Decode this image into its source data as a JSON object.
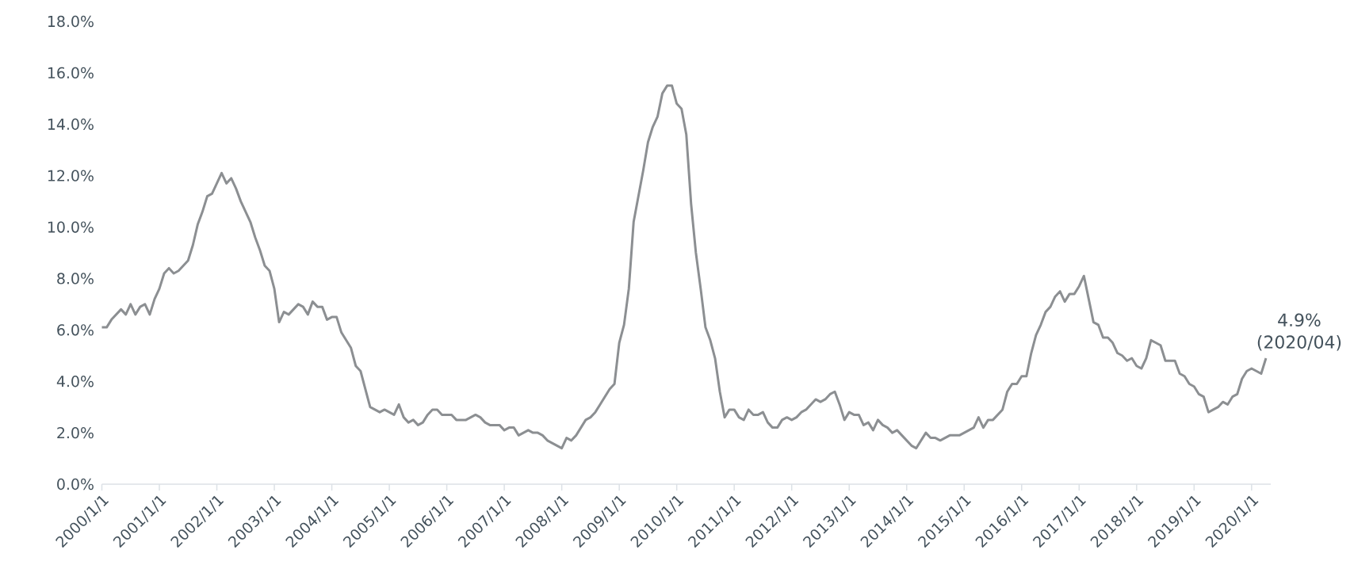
{
  "chart_data": {
    "type": "line",
    "x": [
      "2000-01",
      "2000-02",
      "2000-03",
      "2000-04",
      "2000-05",
      "2000-06",
      "2000-07",
      "2000-08",
      "2000-09",
      "2000-10",
      "2000-11",
      "2000-12",
      "2001-01",
      "2001-02",
      "2001-03",
      "2001-04",
      "2001-05",
      "2001-06",
      "2001-07",
      "2001-08",
      "2001-09",
      "2001-10",
      "2001-11",
      "2001-12",
      "2002-01",
      "2002-02",
      "2002-03",
      "2002-04",
      "2002-05",
      "2002-06",
      "2002-07",
      "2002-08",
      "2002-09",
      "2002-10",
      "2002-11",
      "2002-12",
      "2003-01",
      "2003-02",
      "2003-03",
      "2003-04",
      "2003-05",
      "2003-06",
      "2003-07",
      "2003-08",
      "2003-09",
      "2003-10",
      "2003-11",
      "2003-12",
      "2004-01",
      "2004-02",
      "2004-03",
      "2004-04",
      "2004-05",
      "2004-06",
      "2004-07",
      "2004-08",
      "2004-09",
      "2004-10",
      "2004-11",
      "2004-12",
      "2005-01",
      "2005-02",
      "2005-03",
      "2005-04",
      "2005-05",
      "2005-06",
      "2005-07",
      "2005-08",
      "2005-09",
      "2005-10",
      "2005-11",
      "2005-12",
      "2006-01",
      "2006-02",
      "2006-03",
      "2006-04",
      "2006-05",
      "2006-06",
      "2006-07",
      "2006-08",
      "2006-09",
      "2006-10",
      "2006-11",
      "2006-12",
      "2007-01",
      "2007-02",
      "2007-03",
      "2007-04",
      "2007-05",
      "2007-06",
      "2007-07",
      "2007-08",
      "2007-09",
      "2007-10",
      "2007-11",
      "2007-12",
      "2008-01",
      "2008-02",
      "2008-03",
      "2008-04",
      "2008-05",
      "2008-06",
      "2008-07",
      "2008-08",
      "2008-09",
      "2008-10",
      "2008-11",
      "2008-12",
      "2009-01",
      "2009-02",
      "2009-03",
      "2009-04",
      "2009-05",
      "2009-06",
      "2009-07",
      "2009-08",
      "2009-09",
      "2009-10",
      "2009-11",
      "2009-12",
      "2010-01",
      "2010-02",
      "2010-03",
      "2010-04",
      "2010-05",
      "2010-06",
      "2010-07",
      "2010-08",
      "2010-09",
      "2010-10",
      "2010-11",
      "2010-12",
      "2011-01",
      "2011-02",
      "2011-03",
      "2011-04",
      "2011-05",
      "2011-06",
      "2011-07",
      "2011-08",
      "2011-09",
      "2011-10",
      "2011-11",
      "2011-12",
      "2012-01",
      "2012-02",
      "2012-03",
      "2012-04",
      "2012-05",
      "2012-06",
      "2012-07",
      "2012-08",
      "2012-09",
      "2012-10",
      "2012-11",
      "2012-12",
      "2013-01",
      "2013-02",
      "2013-03",
      "2013-04",
      "2013-05",
      "2013-06",
      "2013-07",
      "2013-08",
      "2013-09",
      "2013-10",
      "2013-11",
      "2013-12",
      "2014-01",
      "2014-02",
      "2014-03",
      "2014-04",
      "2014-05",
      "2014-06",
      "2014-07",
      "2014-08",
      "2014-09",
      "2014-10",
      "2014-11",
      "2014-12",
      "2015-01",
      "2015-02",
      "2015-03",
      "2015-04",
      "2015-05",
      "2015-06",
      "2015-07",
      "2015-08",
      "2015-09",
      "2015-10",
      "2015-11",
      "2015-12",
      "2016-01",
      "2016-02",
      "2016-03",
      "2016-04",
      "2016-05",
      "2016-06",
      "2016-07",
      "2016-08",
      "2016-09",
      "2016-10",
      "2016-11",
      "2016-12",
      "2017-01",
      "2017-02",
      "2017-03",
      "2017-04",
      "2017-05",
      "2017-06",
      "2017-07",
      "2017-08",
      "2017-09",
      "2017-10",
      "2017-11",
      "2017-12",
      "2018-01",
      "2018-02",
      "2018-03",
      "2018-04",
      "2018-05",
      "2018-06",
      "2018-07",
      "2018-08",
      "2018-09",
      "2018-10",
      "2018-11",
      "2018-12",
      "2019-01",
      "2019-02",
      "2019-03",
      "2019-04",
      "2019-05",
      "2019-06",
      "2019-07",
      "2019-08",
      "2019-09",
      "2019-10",
      "2019-11",
      "2019-12",
      "2020-01",
      "2020-02",
      "2020-03",
      "2020-04"
    ],
    "series": [
      {
        "color": "#8c8f92",
        "values": [
          6.1,
          6.1,
          6.4,
          6.6,
          6.8,
          6.6,
          7.0,
          6.6,
          6.9,
          7.0,
          6.6,
          7.2,
          7.6,
          8.2,
          8.4,
          8.2,
          8.3,
          8.5,
          8.7,
          9.3,
          10.1,
          10.6,
          11.2,
          11.3,
          11.7,
          12.1,
          11.7,
          11.9,
          11.5,
          11.0,
          10.6,
          10.2,
          9.6,
          9.1,
          8.5,
          8.3,
          7.6,
          6.3,
          6.7,
          6.6,
          6.8,
          7.0,
          6.9,
          6.6,
          7.1,
          6.9,
          6.9,
          6.4,
          6.5,
          6.5,
          5.9,
          5.6,
          5.3,
          4.6,
          4.4,
          3.7,
          3.0,
          2.9,
          2.8,
          2.9,
          2.8,
          2.7,
          3.1,
          2.6,
          2.4,
          2.5,
          2.3,
          2.4,
          2.7,
          2.9,
          2.9,
          2.7,
          2.7,
          2.7,
          2.5,
          2.5,
          2.5,
          2.6,
          2.7,
          2.6,
          2.4,
          2.3,
          2.3,
          2.3,
          2.1,
          2.2,
          2.2,
          1.9,
          2.0,
          2.1,
          2.0,
          2.0,
          1.9,
          1.7,
          1.6,
          1.5,
          1.4,
          1.8,
          1.7,
          1.9,
          2.2,
          2.5,
          2.6,
          2.8,
          3.1,
          3.4,
          3.7,
          3.9,
          5.5,
          6.2,
          7.6,
          10.2,
          11.2,
          12.2,
          13.3,
          13.9,
          14.3,
          15.2,
          15.5,
          15.5,
          14.8,
          14.6,
          13.6,
          10.9,
          9.0,
          7.6,
          6.1,
          5.6,
          4.9,
          3.6,
          2.6,
          2.9,
          2.9,
          2.6,
          2.5,
          2.9,
          2.7,
          2.7,
          2.8,
          2.4,
          2.2,
          2.2,
          2.5,
          2.6,
          2.5,
          2.6,
          2.8,
          2.9,
          3.1,
          3.3,
          3.2,
          3.3,
          3.5,
          3.6,
          3.1,
          2.5,
          2.8,
          2.7,
          2.7,
          2.3,
          2.4,
          2.1,
          2.5,
          2.3,
          2.2,
          2.0,
          2.1,
          1.9,
          1.7,
          1.5,
          1.4,
          1.7,
          2.0,
          1.8,
          1.8,
          1.7,
          1.8,
          1.9,
          1.9,
          1.9,
          2.0,
          2.1,
          2.2,
          2.6,
          2.2,
          2.5,
          2.5,
          2.7,
          2.9,
          3.6,
          3.9,
          3.9,
          4.2,
          4.2,
          5.1,
          5.8,
          6.2,
          6.7,
          6.9,
          7.3,
          7.5,
          7.1,
          7.4,
          7.4,
          7.7,
          8.1,
          7.2,
          6.3,
          6.2,
          5.7,
          5.7,
          5.5,
          5.1,
          5.0,
          4.8,
          4.9,
          4.6,
          4.5,
          4.9,
          5.6,
          5.5,
          5.4,
          4.8,
          4.8,
          4.8,
          4.3,
          4.2,
          3.9,
          3.8,
          3.5,
          3.4,
          2.8,
          2.9,
          3.0,
          3.2,
          3.1,
          3.4,
          3.5,
          4.1,
          4.4,
          4.5,
          4.4,
          4.3,
          4.9
        ]
      }
    ],
    "xlim": [
      "2000-01",
      "2020-05"
    ],
    "xticks": [
      {
        "value": "2000-01",
        "label": "2000/1/1"
      },
      {
        "value": "2001-01",
        "label": "2001/1/1"
      },
      {
        "value": "2002-01",
        "label": "2002/1/1"
      },
      {
        "value": "2003-01",
        "label": "2003/1/1"
      },
      {
        "value": "2004-01",
        "label": "2004/1/1"
      },
      {
        "value": "2005-01",
        "label": "2005/1/1"
      },
      {
        "value": "2006-01",
        "label": "2006/1/1"
      },
      {
        "value": "2007-01",
        "label": "2007/1/1"
      },
      {
        "value": "2008-01",
        "label": "2008/1/1"
      },
      {
        "value": "2009-01",
        "label": "2009/1/1"
      },
      {
        "value": "2010-01",
        "label": "2010/1/1"
      },
      {
        "value": "2011-01",
        "label": "2011/1/1"
      },
      {
        "value": "2012-01",
        "label": "2012/1/1"
      },
      {
        "value": "2013-01",
        "label": "2013/1/1"
      },
      {
        "value": "2014-01",
        "label": "2014/1/1"
      },
      {
        "value": "2015-01",
        "label": "2015/1/1"
      },
      {
        "value": "2016-01",
        "label": "2016/1/1"
      },
      {
        "value": "2017-01",
        "label": "2017/1/1"
      },
      {
        "value": "2018-01",
        "label": "2018/1/1"
      },
      {
        "value": "2019-01",
        "label": "2019/1/1"
      },
      {
        "value": "2020-01",
        "label": "2020/1/1"
      }
    ],
    "ylim": [
      0,
      18
    ],
    "yticks": [
      {
        "value": 0,
        "label": "0.0%"
      },
      {
        "value": 2,
        "label": "2.0%"
      },
      {
        "value": 4,
        "label": "4.0%"
      },
      {
        "value": 6,
        "label": "6.0%"
      },
      {
        "value": 8,
        "label": "8.0%"
      },
      {
        "value": 10,
        "label": "10.0%"
      },
      {
        "value": 12,
        "label": "12.0%"
      },
      {
        "value": 14,
        "label": "14.0%"
      },
      {
        "value": 16,
        "label": "16.0%"
      },
      {
        "value": 18,
        "label": "18.0%"
      }
    ],
    "grid": false,
    "marker": "none",
    "line_style": "solid",
    "annotations": [
      {
        "text": "4.9% (2020/04)",
        "x": "2020-04",
        "y": 4.9
      }
    ]
  }
}
